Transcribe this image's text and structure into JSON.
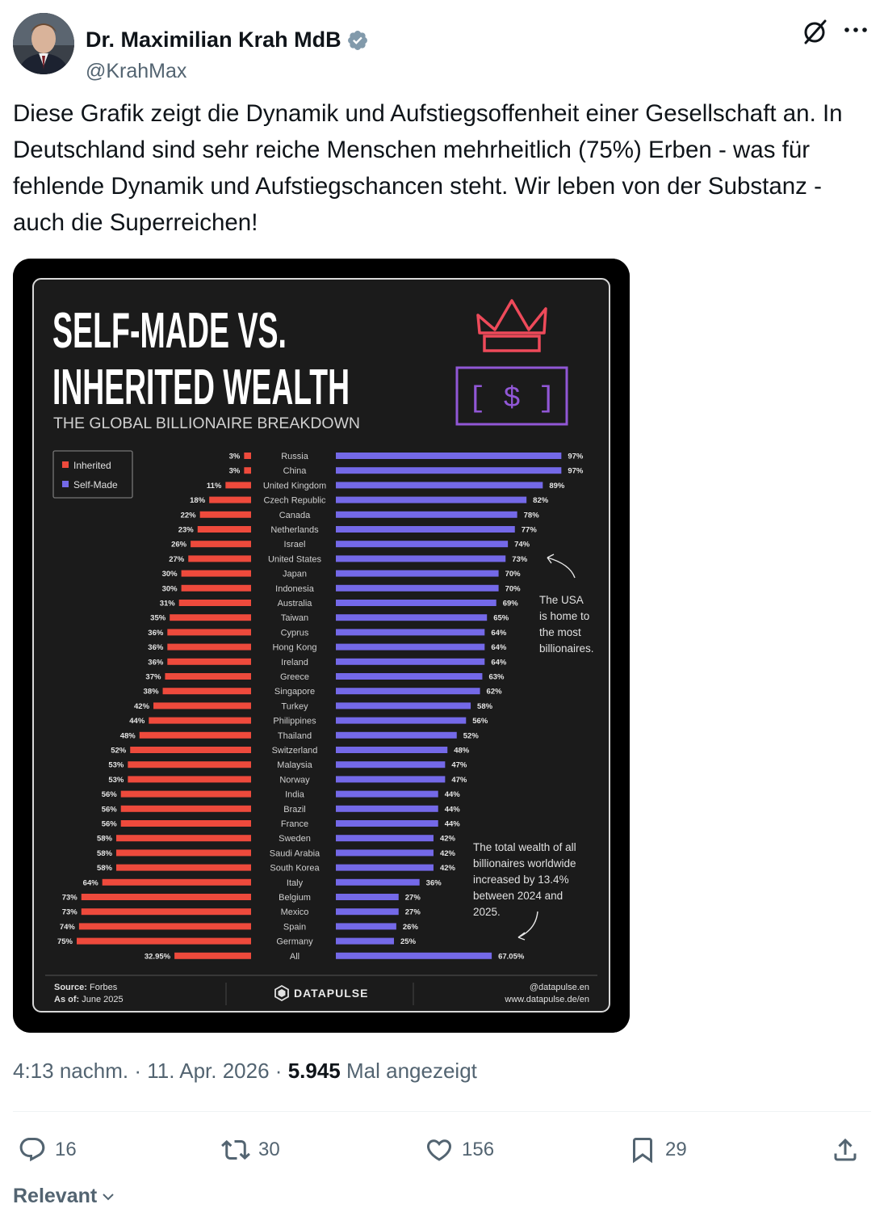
{
  "author": {
    "name": "Dr. Maximilian Krah MdB",
    "handle": "@KrahMax",
    "avatar_icon": "person-avatar"
  },
  "tweet": {
    "text": "Diese Grafik zeigt die Dynamik und Aufstiegsoffenheit einer Gesellschaft an. In Deutschland sind sehr reiche Menschen mehrheitlich (75%) Erben - was für fehlende Dynamik und Aufstiegschancen steht. Wir leben von der Substanz - auch die Superreichen!",
    "time": "4:13 nachm.",
    "date": "11. Apr. 2026",
    "views": "5.945",
    "views_label": "Mal angezeigt",
    "sep": "·"
  },
  "actions": {
    "reply": "16",
    "retweet": "30",
    "like": "156",
    "bookmark": "29"
  },
  "sort_label": "Relevant",
  "infographic": {
    "title_line1": "SELF-MADE VS.",
    "title_line2": "INHERITED WEALTH",
    "subtitle": "THE GLOBAL BILLIONAIRE BREAKDOWN",
    "legend_inherited": "Inherited",
    "legend_selfmade": "Self-Made",
    "annotation_usa": [
      "The USA",
      "is home to",
      "the most",
      "billionaires."
    ],
    "annotation_total": [
      "The total wealth of all",
      "billionaires worldwide",
      "increased by 13.4%",
      "between 2024 and",
      "2025."
    ],
    "source_label": "Source:",
    "source_value": "Forbes",
    "asof_label": "As of:",
    "asof_value": "June 2025",
    "brand": "DATAPULSE",
    "footer_handle": "@datapulse.en",
    "footer_url": "www.datapulse.de/en",
    "colors": {
      "inherited": "#ee4a3c",
      "selfmade": "#7469e8",
      "background": "#1b1b1b",
      "crown": "#ee4a5a",
      "dollar_box": "#9157d6"
    }
  },
  "chart_data": {
    "type": "bar",
    "orientation": "horizontal-diverging",
    "title": "SELF-MADE VS. INHERITED WEALTH",
    "subtitle": "THE GLOBAL BILLIONAIRE BREAKDOWN",
    "categories": [
      "Russia",
      "China",
      "United Kingdom",
      "Czech Republic",
      "Canada",
      "Netherlands",
      "Israel",
      "United States",
      "Japan",
      "Indonesia",
      "Australia",
      "Taiwan",
      "Cyprus",
      "Hong Kong",
      "Ireland",
      "Greece",
      "Singapore",
      "Turkey",
      "Philippines",
      "Thailand",
      "Switzerland",
      "Malaysia",
      "Norway",
      "India",
      "Brazil",
      "France",
      "Sweden",
      "Saudi Arabia",
      "South Korea",
      "Italy",
      "Belgium",
      "Mexico",
      "Spain",
      "Germany",
      "All"
    ],
    "series": [
      {
        "name": "Inherited",
        "labels": [
          "3%",
          "3%",
          "11%",
          "18%",
          "22%",
          "23%",
          "26%",
          "27%",
          "30%",
          "30%",
          "31%",
          "35%",
          "36%",
          "36%",
          "36%",
          "37%",
          "38%",
          "42%",
          "44%",
          "48%",
          "52%",
          "53%",
          "53%",
          "56%",
          "56%",
          "56%",
          "58%",
          "58%",
          "58%",
          "64%",
          "73%",
          "73%",
          "74%",
          "75%",
          "32.95%"
        ],
        "values": [
          3,
          3,
          11,
          18,
          22,
          23,
          26,
          27,
          30,
          30,
          31,
          35,
          36,
          36,
          36,
          37,
          38,
          42,
          44,
          48,
          52,
          53,
          53,
          56,
          56,
          56,
          58,
          58,
          58,
          64,
          73,
          73,
          74,
          75,
          32.95
        ]
      },
      {
        "name": "Self-Made",
        "labels": [
          "97%",
          "97%",
          "89%",
          "82%",
          "78%",
          "77%",
          "74%",
          "73%",
          "70%",
          "70%",
          "69%",
          "65%",
          "64%",
          "64%",
          "64%",
          "63%",
          "62%",
          "58%",
          "56%",
          "52%",
          "48%",
          "47%",
          "47%",
          "44%",
          "44%",
          "44%",
          "42%",
          "42%",
          "42%",
          "36%",
          "27%",
          "27%",
          "26%",
          "25%",
          "67.05%"
        ],
        "values": [
          97,
          97,
          89,
          82,
          78,
          77,
          74,
          73,
          70,
          70,
          69,
          65,
          64,
          64,
          64,
          63,
          62,
          58,
          56,
          52,
          48,
          47,
          47,
          44,
          44,
          44,
          42,
          42,
          42,
          36,
          27,
          27,
          26,
          25,
          67.05
        ]
      }
    ],
    "legend": "top-left",
    "grid": false
  }
}
